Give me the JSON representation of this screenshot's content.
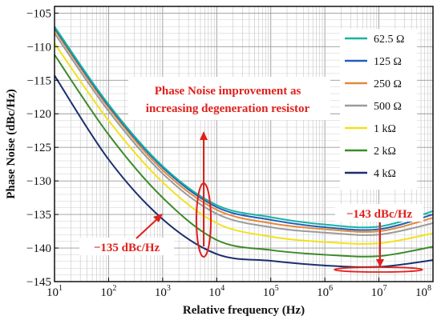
{
  "chart_data": {
    "type": "line",
    "title": "",
    "xlabel": "Relative frequency (Hz)",
    "ylabel": "Phase Noise (dBc/Hz)",
    "xscale": "log",
    "xlim": [
      10,
      100000000
    ],
    "ylim": [
      -145,
      -104
    ],
    "grid": true,
    "legend_position": "top-right",
    "x_ticks": [
      {
        "value": 10,
        "base": "10",
        "exp": "1"
      },
      {
        "value": 100,
        "base": "10",
        "exp": "2"
      },
      {
        "value": 1000,
        "base": "10",
        "exp": "3"
      },
      {
        "value": 10000,
        "base": "10",
        "exp": "4"
      },
      {
        "value": 100000,
        "base": "10",
        "exp": "5"
      },
      {
        "value": 1000000,
        "base": "10",
        "exp": "6"
      },
      {
        "value": 10000000,
        "base": "10",
        "exp": "7"
      },
      {
        "value": 100000000,
        "base": "10",
        "exp": "8"
      }
    ],
    "y_ticks": [
      {
        "value": -105,
        "label": "−105"
      },
      {
        "value": -110,
        "label": "−110"
      },
      {
        "value": -115,
        "label": "−115"
      },
      {
        "value": -120,
        "label": "−120"
      },
      {
        "value": -125,
        "label": "−125"
      },
      {
        "value": -130,
        "label": "−130"
      },
      {
        "value": -135,
        "label": "−135"
      },
      {
        "value": -140,
        "label": "−140"
      },
      {
        "value": -145,
        "label": "−145"
      }
    ],
    "x": [
      10,
      100,
      1000,
      10000,
      100000,
      1000000,
      10000000,
      100000000
    ],
    "series": [
      {
        "name": "62.5 Ω",
        "color": "#16b3a4",
        "values": [
          -107.0,
          -118.6,
          -127.8,
          -133.6,
          -135.4,
          -136.5,
          -136.8,
          -134.5
        ]
      },
      {
        "name": "125 Ω",
        "color": "#1f5fb8",
        "values": [
          -107.2,
          -118.8,
          -128.0,
          -133.9,
          -135.8,
          -136.9,
          -137.2,
          -135.0
        ]
      },
      {
        "name": "250 Ω",
        "color": "#e08a3c",
        "values": [
          -107.5,
          -119.1,
          -128.4,
          -134.3,
          -136.3,
          -137.2,
          -137.5,
          -135.5
        ]
      },
      {
        "name": "500 Ω",
        "color": "#9a9a9a",
        "values": [
          -108.0,
          -119.6,
          -128.9,
          -134.9,
          -136.9,
          -137.7,
          -138.0,
          -136.3
        ]
      },
      {
        "name": "1 kΩ",
        "color": "#f2e21c",
        "values": [
          -109.5,
          -121.0,
          -130.2,
          -136.3,
          -138.3,
          -139.1,
          -139.3,
          -137.8
        ]
      },
      {
        "name": "2 kΩ",
        "color": "#3d8a2a",
        "values": [
          -111.2,
          -123.1,
          -132.5,
          -138.8,
          -140.3,
          -141.0,
          -141.2,
          -139.8
        ]
      },
      {
        "name": "4 kΩ",
        "color": "#1a2f6e",
        "values": [
          -114.3,
          -126.8,
          -135.7,
          -140.9,
          -141.9,
          -142.6,
          -142.8,
          -141.8
        ]
      }
    ],
    "annotations": {
      "improvement_line1": "Phase Noise improvement as",
      "improvement_line2": "increasing degeneration resistor",
      "left_label": "−135 dBc/Hz",
      "right_label": "−143 dBc/Hz"
    }
  }
}
